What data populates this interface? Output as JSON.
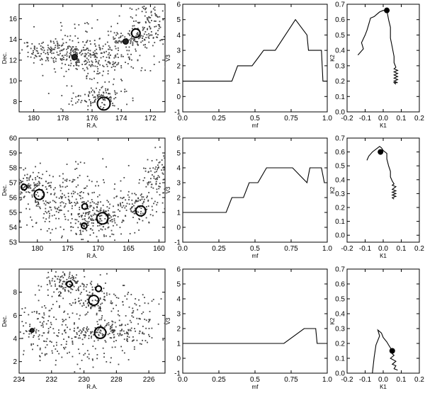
{
  "chart_data": [
    {
      "type": "scatter",
      "row": 0,
      "col": 0,
      "xlabel": "R.A.",
      "ylabel": "Dec.",
      "xlim": [
        181,
        171
      ],
      "ylim": [
        7,
        17.4
      ],
      "xticks": [
        180,
        178,
        176,
        174,
        172
      ],
      "yticks": [
        8,
        10,
        12,
        14,
        16
      ],
      "clusters": [
        {
          "ra": 178.5,
          "dec": 12.8,
          "sra": 1.3,
          "sdec": 0.6,
          "n": 150
        },
        {
          "ra": 177.2,
          "dec": 12.3,
          "sra": 0.8,
          "sdec": 0.9,
          "n": 90
        },
        {
          "ra": 175.6,
          "dec": 11.8,
          "sra": 0.8,
          "sdec": 0.9,
          "n": 90
        },
        {
          "ra": 173.3,
          "dec": 14.0,
          "sra": 1.0,
          "sdec": 0.5,
          "n": 90
        },
        {
          "ra": 172.2,
          "dec": 15.6,
          "sra": 0.8,
          "sdec": 1.0,
          "n": 110
        },
        {
          "ra": 175.5,
          "dec": 8.3,
          "sra": 1.1,
          "sdec": 0.6,
          "n": 110
        },
        {
          "ra": 174.2,
          "dec": 12.3,
          "sra": 1.3,
          "sdec": 0.8,
          "n": 70
        },
        {
          "ra": 176.5,
          "dec": 14.2,
          "sra": 1.6,
          "sdec": 1.3,
          "n": 40
        }
      ],
      "markers": [
        {
          "ra": 177.2,
          "dec": 12.3,
          "r": 4,
          "filled": true
        },
        {
          "ra": 173.7,
          "dec": 13.8,
          "r": 4,
          "filled": true
        },
        {
          "ra": 173.0,
          "dec": 14.6,
          "r": 6,
          "filled": false
        },
        {
          "ra": 175.2,
          "dec": 7.8,
          "r": 9,
          "filled": false
        }
      ],
      "point_labels": []
    },
    {
      "type": "line",
      "row": 0,
      "col": 1,
      "xlabel": "mf",
      "ylabel": "V3",
      "xlim": [
        0,
        1
      ],
      "ylim": [
        -1,
        6
      ],
      "xticks": [
        0.0,
        0.25,
        0.5,
        0.75,
        1.0
      ],
      "yticks": [
        -1,
        0,
        1,
        2,
        3,
        4,
        5,
        6
      ],
      "x": [
        0,
        0.34,
        0.38,
        0.48,
        0.52,
        0.56,
        0.64,
        0.78,
        0.86,
        0.87,
        0.96,
        0.97,
        1.0
      ],
      "y": [
        1,
        1,
        2,
        2,
        2.5,
        3,
        3,
        5,
        4,
        3,
        3,
        1,
        1
      ]
    },
    {
      "type": "line",
      "row": 0,
      "col": 2,
      "xlabel": "K1",
      "ylabel": "K2",
      "xlim": [
        -0.2,
        0.2
      ],
      "ylim": [
        0,
        0.7
      ],
      "xticks": [
        -0.2,
        -0.1,
        0.0,
        0.1,
        0.2
      ],
      "yticks": [
        0.0,
        0.1,
        0.2,
        0.3,
        0.4,
        0.5,
        0.6,
        0.7
      ],
      "x": [
        -0.14,
        -0.11,
        -0.12,
        -0.1,
        -0.09,
        -0.08,
        -0.07,
        -0.05,
        -0.04,
        -0.02,
        0.0,
        0.02,
        0.03,
        0.04,
        0.04,
        0.05,
        0.06,
        0.06,
        0.07,
        0.06,
        0.08,
        0.06,
        0.08,
        0.06,
        0.08,
        0.06,
        0.08,
        0.06,
        0.08,
        0.06,
        0.07
      ],
      "y": [
        0.37,
        0.41,
        0.45,
        0.5,
        0.53,
        0.57,
        0.61,
        0.62,
        0.63,
        0.65,
        0.66,
        0.66,
        0.6,
        0.55,
        0.48,
        0.42,
        0.36,
        0.32,
        0.29,
        0.28,
        0.27,
        0.26,
        0.25,
        0.24,
        0.23,
        0.22,
        0.21,
        0.2,
        0.19,
        0.19,
        0.18
      ],
      "endpoint": {
        "x": 0.02,
        "y": 0.66
      }
    },
    {
      "type": "scatter",
      "row": 1,
      "col": 0,
      "xlabel": "R.A.",
      "ylabel": "Dec.",
      "xlim": [
        183,
        159
      ],
      "ylim": [
        53,
        60
      ],
      "xticks": [
        180,
        175,
        170,
        165,
        160
      ],
      "yticks": [
        53,
        54,
        55,
        56,
        57,
        58,
        59,
        60
      ],
      "clusters": [
        {
          "ra": 181,
          "dec": 56.8,
          "sra": 1.5,
          "sdec": 0.5,
          "n": 110
        },
        {
          "ra": 177.5,
          "dec": 55.3,
          "sra": 2.5,
          "sdec": 0.9,
          "n": 130
        },
        {
          "ra": 172,
          "dec": 54.6,
          "sra": 1.4,
          "sdec": 0.7,
          "n": 110
        },
        {
          "ra": 168.8,
          "dec": 54.6,
          "sra": 1.2,
          "sdec": 0.5,
          "n": 90
        },
        {
          "ra": 164,
          "dec": 55.3,
          "sra": 2.0,
          "sdec": 0.7,
          "n": 130
        },
        {
          "ra": 160.3,
          "dec": 57.3,
          "sra": 1.0,
          "sdec": 0.8,
          "n": 80
        },
        {
          "ra": 174,
          "dec": 57.0,
          "sra": 3.0,
          "sdec": 0.9,
          "n": 80
        }
      ],
      "markers": [
        {
          "ra": 182.2,
          "dec": 56.7,
          "r": 4,
          "filled": false
        },
        {
          "ra": 179.7,
          "dec": 56.2,
          "r": 7,
          "filled": false
        },
        {
          "ra": 172.2,
          "dec": 55.4,
          "r": 4,
          "filled": false
        },
        {
          "ra": 172.3,
          "dec": 54.1,
          "r": 4,
          "filled": false
        },
        {
          "ra": 169.3,
          "dec": 54.6,
          "r": 8,
          "filled": false
        },
        {
          "ra": 163,
          "dec": 55.1,
          "r": 7,
          "filled": false
        }
      ],
      "point_labels": [
        {
          "text": "2",
          "ra": 180.0,
          "dec": 55.6
        },
        {
          "text": "1",
          "ra": 172.9,
          "dec": 53.7
        }
      ]
    },
    {
      "type": "line",
      "row": 1,
      "col": 1,
      "xlabel": "mf",
      "ylabel": "V3",
      "xlim": [
        0,
        1
      ],
      "ylim": [
        -1,
        6
      ],
      "xticks": [
        0.0,
        0.25,
        0.5,
        0.75,
        1.0
      ],
      "yticks": [
        -1,
        0,
        1,
        2,
        3,
        4,
        5,
        6
      ],
      "x": [
        0,
        0.3,
        0.34,
        0.42,
        0.46,
        0.52,
        0.58,
        0.76,
        0.86,
        0.88,
        0.96,
        0.98,
        1.0
      ],
      "y": [
        1,
        1,
        2,
        2,
        3,
        3,
        4,
        4,
        3,
        4,
        4,
        3,
        3
      ]
    },
    {
      "type": "line",
      "row": 1,
      "col": 2,
      "xlabel": "K1",
      "ylabel": "K2",
      "xlim": [
        -0.2,
        0.2
      ],
      "ylim": [
        -0.05,
        0.7
      ],
      "xticks": [
        -0.2,
        -0.1,
        0.0,
        0.1,
        0.2
      ],
      "yticks": [
        0.0,
        0.1,
        0.2,
        0.3,
        0.4,
        0.5,
        0.6,
        0.7
      ],
      "x": [
        -0.09,
        -0.08,
        -0.06,
        -0.04,
        -0.03,
        -0.02,
        -0.01,
        0.0,
        0.02,
        0.02,
        0.03,
        0.04,
        0.04,
        0.05,
        0.06,
        0.05,
        0.07,
        0.05,
        0.07,
        0.05,
        0.07,
        0.05,
        0.07,
        0.05,
        0.06
      ],
      "y": [
        0.54,
        0.57,
        0.6,
        0.62,
        0.63,
        0.64,
        0.63,
        0.61,
        0.59,
        0.55,
        0.5,
        0.46,
        0.42,
        0.39,
        0.37,
        0.36,
        0.35,
        0.33,
        0.32,
        0.31,
        0.3,
        0.29,
        0.28,
        0.27,
        0.26
      ],
      "endpoint": {
        "x": -0.015,
        "y": 0.6
      }
    },
    {
      "type": "scatter",
      "row": 2,
      "col": 0,
      "xlabel": "R.A.",
      "ylabel": "Dec.",
      "xlim": [
        234,
        225
      ],
      "ylim": [
        1,
        10
      ],
      "xticks": [
        234,
        232,
        230,
        228,
        226
      ],
      "yticks": [
        2,
        4,
        6,
        8
      ],
      "clusters": [
        {
          "ra": 230.8,
          "dec": 8.7,
          "sra": 0.7,
          "sdec": 0.5,
          "n": 120
        },
        {
          "ra": 229.3,
          "dec": 7.3,
          "sra": 0.7,
          "sdec": 0.7,
          "n": 90
        },
        {
          "ra": 229.0,
          "dec": 4.6,
          "sra": 1.5,
          "sdec": 0.5,
          "n": 140
        },
        {
          "ra": 233.2,
          "dec": 4.8,
          "sra": 0.8,
          "sdec": 1.0,
          "n": 70
        },
        {
          "ra": 231.5,
          "dec": 5.6,
          "sra": 1.2,
          "sdec": 1.4,
          "n": 90
        },
        {
          "ra": 227.0,
          "dec": 5.5,
          "sra": 1.0,
          "sdec": 1.5,
          "n": 90
        },
        {
          "ra": 229.8,
          "dec": 3.0,
          "sra": 1.4,
          "sdec": 0.9,
          "n": 70
        }
      ],
      "markers": [
        {
          "ra": 230.9,
          "dec": 8.7,
          "r": 4,
          "filled": false
        },
        {
          "ra": 229.1,
          "dec": 8.3,
          "r": 4,
          "filled": false
        },
        {
          "ra": 229.4,
          "dec": 7.3,
          "r": 7,
          "filled": false
        },
        {
          "ra": 229.0,
          "dec": 4.5,
          "r": 8,
          "filled": false
        },
        {
          "ra": 233.2,
          "dec": 4.7,
          "r": 3,
          "filled": true
        }
      ],
      "point_labels": [
        {
          "text": "2",
          "ra": 231.5,
          "dec": 7.9
        },
        {
          "text": "1",
          "ra": 229.0,
          "dec": 6.6
        }
      ]
    },
    {
      "type": "line",
      "row": 2,
      "col": 1,
      "xlabel": "mf",
      "ylabel": "V3",
      "xlim": [
        0,
        1
      ],
      "ylim": [
        -1,
        6
      ],
      "xticks": [
        0.0,
        0.25,
        0.5,
        0.75,
        1.0
      ],
      "yticks": [
        -1,
        0,
        1,
        2,
        3,
        4,
        5,
        6
      ],
      "x": [
        0,
        0.7,
        0.84,
        0.92,
        0.93,
        1.0
      ],
      "y": [
        1,
        1,
        2,
        2,
        1,
        1
      ]
    },
    {
      "type": "line",
      "row": 2,
      "col": 2,
      "xlabel": "K1",
      "ylabel": "K2",
      "xlim": [
        -0.2,
        0.2
      ],
      "ylim": [
        0,
        0.7
      ],
      "xticks": [
        -0.2,
        -0.1,
        0.0,
        0.1,
        0.2
      ],
      "yticks": [
        0.0,
        0.1,
        0.2,
        0.3,
        0.4,
        0.5,
        0.6,
        0.7
      ],
      "x": [
        -0.06,
        -0.05,
        -0.04,
        -0.02,
        -0.03,
        -0.01,
        0.0,
        0.02,
        0.03,
        0.05,
        0.05,
        0.06,
        0.04,
        0.07,
        0.05,
        0.07,
        0.06,
        0.08
      ],
      "y": [
        0.0,
        0.11,
        0.19,
        0.25,
        0.29,
        0.27,
        0.24,
        0.21,
        0.19,
        0.15,
        0.13,
        0.12,
        0.1,
        0.08,
        0.06,
        0.05,
        0.03,
        0.02
      ],
      "endpoint": {
        "x": 0.05,
        "y": 0.15
      }
    }
  ]
}
